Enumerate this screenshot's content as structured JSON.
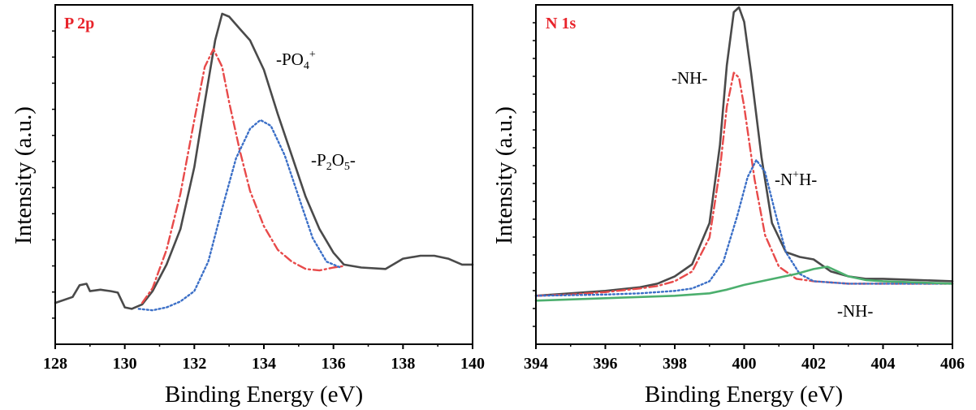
{
  "chart_data": [
    {
      "type": "line",
      "panel_label": "P 2p",
      "panel_label_color": "#e8232a",
      "xlabel": "Binding Energy (eV)",
      "ylabel": "Intensity (a.u.)",
      "xlim": [
        128,
        140
      ],
      "ylim": [
        -0.1,
        1.05
      ],
      "xticks": [
        "128",
        "130",
        "132",
        "134",
        "136",
        "138",
        "140"
      ],
      "grid": false,
      "y_tick_labels_shown": false,
      "series": [
        {
          "style": "solid",
          "color": "#4a4a4a",
          "x": [
            128,
            128.5,
            128.7,
            128.9,
            129.0,
            129.3,
            129.6,
            129.8,
            130.0,
            130.2,
            130.5,
            130.8,
            131.2,
            131.6,
            132.0,
            132.3,
            132.6,
            132.8,
            133.0,
            133.3,
            133.6,
            134.0,
            134.4,
            134.8,
            135.2,
            135.6,
            136.0,
            136.3,
            136.8,
            137.5,
            138.0,
            138.5,
            138.9,
            139.3,
            139.7,
            140.0
          ],
          "y": [
            0.04,
            0.06,
            0.1,
            0.105,
            0.08,
            0.085,
            0.08,
            0.075,
            0.025,
            0.02,
            0.035,
            0.08,
            0.17,
            0.29,
            0.5,
            0.72,
            0.93,
            1.02,
            1.01,
            0.97,
            0.93,
            0.83,
            0.68,
            0.54,
            0.4,
            0.29,
            0.21,
            0.17,
            0.16,
            0.155,
            0.19,
            0.2,
            0.2,
            0.19,
            0.17,
            0.17
          ]
        },
        {
          "style": "dashdot",
          "color": "#e84a4a",
          "x": [
            130.5,
            130.8,
            131.2,
            131.6,
            132.0,
            132.3,
            132.55,
            132.8,
            133.0,
            133.3,
            133.6,
            134.0,
            134.4,
            134.8,
            135.2,
            135.6,
            136.0,
            136.3
          ],
          "y": [
            0.04,
            0.09,
            0.22,
            0.41,
            0.66,
            0.84,
            0.9,
            0.84,
            0.72,
            0.56,
            0.42,
            0.3,
            0.22,
            0.18,
            0.155,
            0.15,
            0.16,
            0.165
          ]
        },
        {
          "style": "dotted",
          "color": "#3b6fc7",
          "x": [
            130.4,
            130.8,
            131.2,
            131.6,
            132.0,
            132.4,
            132.8,
            133.2,
            133.6,
            133.9,
            134.2,
            134.6,
            135.0,
            135.4,
            135.8,
            136.2
          ],
          "y": [
            0.02,
            0.015,
            0.025,
            0.045,
            0.08,
            0.18,
            0.36,
            0.53,
            0.63,
            0.66,
            0.64,
            0.54,
            0.4,
            0.26,
            0.18,
            0.16
          ]
        }
      ],
      "annotations": [
        {
          "text": "-PO",
          "sub": "4",
          "sup": "+"
        },
        {
          "text": "-P",
          "sub": "2",
          "text2": "O",
          "sub2": "5",
          "text3": "-"
        }
      ]
    },
    {
      "type": "line",
      "panel_label": "N 1s",
      "panel_label_color": "#e8232a",
      "xlabel": "Binding Energy (eV)",
      "ylabel": "Intensity (a.u.)",
      "xlim": [
        394,
        406
      ],
      "ylim": [
        -0.2,
        1.2
      ],
      "xticks": [
        "394",
        "396",
        "398",
        "400",
        "402",
        "404",
        "406"
      ],
      "grid": false,
      "y_tick_labels_shown": false,
      "series": [
        {
          "style": "solid",
          "color": "#4a4a4a",
          "x": [
            394,
            395,
            396,
            397,
            397.5,
            398,
            398.5,
            399.0,
            399.3,
            399.5,
            399.7,
            399.85,
            400.0,
            400.2,
            400.5,
            400.8,
            401.2,
            401.6,
            402.0,
            402.5,
            403.0,
            403.5,
            404,
            405,
            406
          ],
          "y": [
            0.0,
            0.01,
            0.02,
            0.035,
            0.05,
            0.08,
            0.13,
            0.3,
            0.62,
            0.95,
            1.17,
            1.19,
            1.13,
            0.92,
            0.57,
            0.3,
            0.18,
            0.16,
            0.15,
            0.1,
            0.08,
            0.07,
            0.07,
            0.065,
            0.06
          ]
        },
        {
          "style": "dashdot",
          "color": "#e84a4a",
          "x": [
            394,
            395,
            396,
            397,
            397.5,
            398,
            398.5,
            399.0,
            399.3,
            399.5,
            399.7,
            399.85,
            400.0,
            400.3,
            400.6,
            401.0,
            401.5,
            402.0,
            403,
            404,
            405,
            406
          ],
          "y": [
            0.0,
            0.005,
            0.015,
            0.03,
            0.04,
            0.06,
            0.1,
            0.24,
            0.52,
            0.78,
            0.92,
            0.9,
            0.78,
            0.48,
            0.25,
            0.12,
            0.07,
            0.06,
            0.05,
            0.05,
            0.05,
            0.05
          ]
        },
        {
          "style": "dotted",
          "color": "#3b6fc7",
          "x": [
            394,
            396,
            397,
            398,
            398.5,
            399.0,
            399.4,
            399.8,
            400.1,
            400.35,
            400.6,
            400.9,
            401.2,
            401.6,
            402.0,
            403,
            404,
            405,
            406
          ],
          "y": [
            0.0,
            0.005,
            0.01,
            0.02,
            0.03,
            0.06,
            0.14,
            0.33,
            0.49,
            0.56,
            0.51,
            0.34,
            0.18,
            0.09,
            0.06,
            0.05,
            0.05,
            0.05,
            0.05
          ]
        },
        {
          "style": "solid",
          "color": "#4caf6e",
          "x": [
            394,
            395,
            396,
            397,
            398,
            399,
            399.5,
            400,
            400.5,
            401,
            401.5,
            402,
            402.4,
            402.7,
            403,
            403.5,
            404,
            405,
            406
          ],
          "y": [
            -0.02,
            -0.015,
            -0.01,
            -0.005,
            0.0,
            0.01,
            0.025,
            0.045,
            0.06,
            0.075,
            0.09,
            0.11,
            0.12,
            0.1,
            0.08,
            0.065,
            0.06,
            0.055,
            0.05
          ]
        }
      ],
      "annotations": [
        {
          "text": "-NH-"
        },
        {
          "text": "-N",
          "sup": "+",
          "text2": "H-"
        },
        {
          "text": "-NH-"
        }
      ]
    }
  ]
}
